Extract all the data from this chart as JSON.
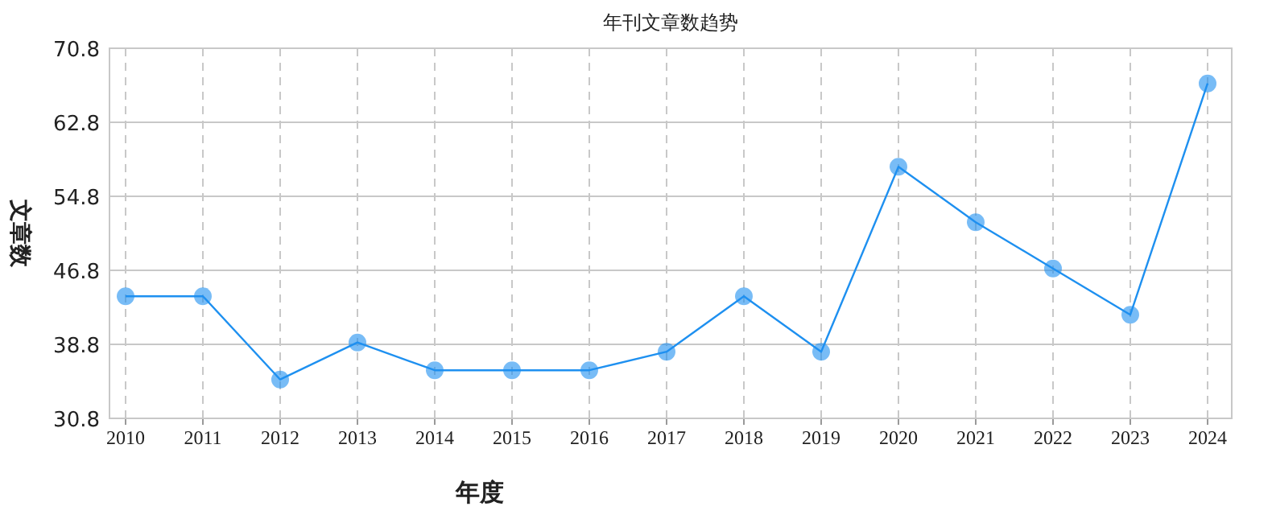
{
  "chart_data": {
    "type": "line",
    "title": "年刊文章数趋势",
    "xlabel": "年度",
    "ylabel": "文章数",
    "categories": [
      "2010",
      "2011",
      "2012",
      "2013",
      "2014",
      "2015",
      "2016",
      "2017",
      "2018",
      "2019",
      "2020",
      "2021",
      "2022",
      "2023",
      "2024"
    ],
    "series": [
      {
        "color": "#1e90f0",
        "values": [
          44,
          44,
          35,
          39,
          36,
          36,
          36,
          38,
          44,
          38,
          58,
          52,
          47,
          42,
          67
        ]
      }
    ],
    "ylim": [
      30.8,
      70.8
    ],
    "yticks": [
      30.8,
      38.8,
      46.8,
      54.8,
      62.8,
      70.8
    ],
    "grid": true,
    "marker": "circle",
    "line_style": "solid"
  }
}
